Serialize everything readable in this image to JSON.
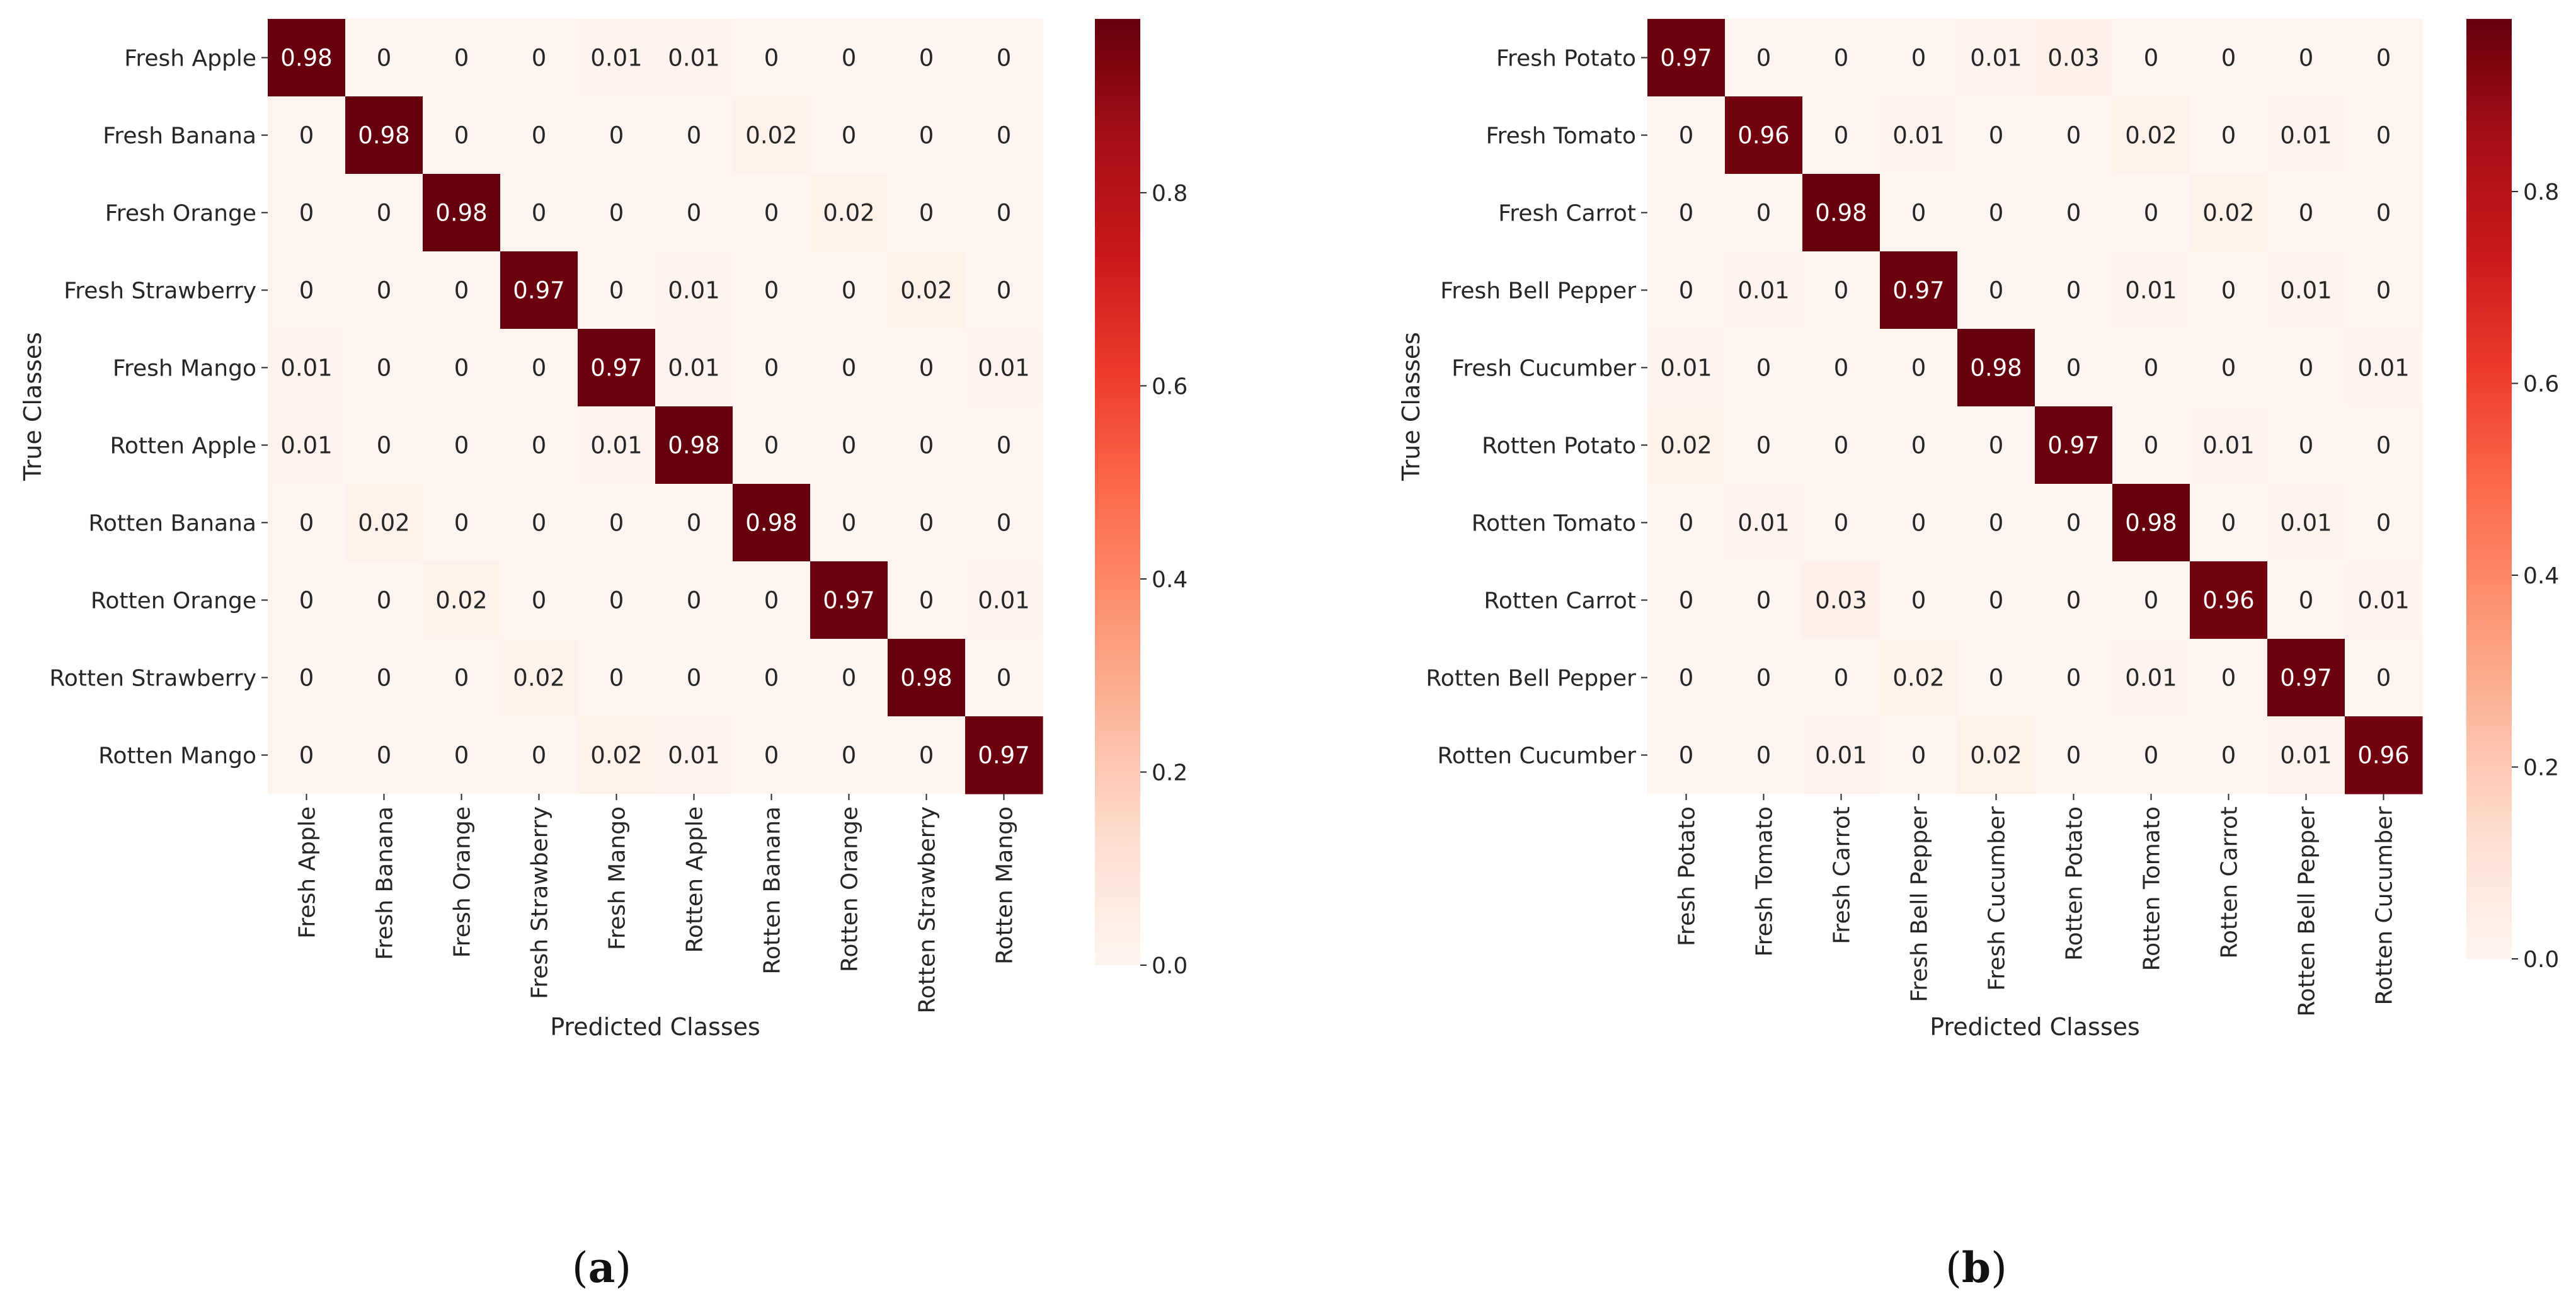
{
  "chart_data": [
    {
      "type": "heatmap",
      "panel_label": "a",
      "xlabel": "Predicted Classes",
      "ylabel": "True Classes",
      "x_categories": [
        "Fresh Apple",
        "Fresh Banana",
        "Fresh Orange",
        "Fresh Strawberry",
        "Fresh Mango",
        "Rotten Apple",
        "Rotten Banana",
        "Rotten Orange",
        "Rotten Strawberry",
        "Rotten Mango"
      ],
      "y_categories": [
        "Fresh Apple",
        "Fresh Banana",
        "Fresh Orange",
        "Fresh Strawberry",
        "Fresh Mango",
        "Rotten Apple",
        "Rotten Banana",
        "Rotten Orange",
        "Rotten Strawberry",
        "Rotten Mango"
      ],
      "values": [
        [
          0.98,
          0,
          0,
          0,
          0.01,
          0.01,
          0,
          0,
          0,
          0
        ],
        [
          0,
          0.98,
          0,
          0,
          0,
          0,
          0.02,
          0,
          0,
          0
        ],
        [
          0,
          0,
          0.98,
          0,
          0,
          0,
          0,
          0.02,
          0,
          0
        ],
        [
          0,
          0,
          0,
          0.97,
          0,
          0.01,
          0,
          0,
          0.02,
          0
        ],
        [
          0.01,
          0,
          0,
          0,
          0.97,
          0.01,
          0,
          0,
          0,
          0.01
        ],
        [
          0.01,
          0,
          0,
          0,
          0.01,
          0.98,
          0,
          0,
          0,
          0
        ],
        [
          0,
          0.02,
          0,
          0,
          0,
          0,
          0.98,
          0,
          0,
          0
        ],
        [
          0,
          0,
          0.02,
          0,
          0,
          0,
          0,
          0.97,
          0,
          0.01
        ],
        [
          0,
          0,
          0,
          0.02,
          0,
          0,
          0,
          0,
          0.98,
          0
        ],
        [
          0,
          0,
          0,
          0,
          0.02,
          0.01,
          0,
          0,
          0,
          0.97
        ]
      ],
      "colorbar": {
        "range": [
          0,
          0.98
        ],
        "ticks": [
          0.0,
          0.2,
          0.4,
          0.6,
          0.8
        ],
        "tick_labels": [
          "0.0",
          "0.2",
          "0.4",
          "0.6",
          "0.8"
        ],
        "colormap": "Reds"
      }
    },
    {
      "type": "heatmap",
      "panel_label": "b",
      "xlabel": "Predicted Classes",
      "ylabel": "True Classes",
      "x_categories": [
        "Fresh Potato",
        "Fresh Tomato",
        "Fresh Carrot",
        "Fresh Bell Pepper",
        "Fresh Cucumber",
        "Rotten Potato",
        "Rotten Tomato",
        "Rotten Carrot",
        "Rotten Bell Pepper",
        "Rotten Cucumber"
      ],
      "y_categories": [
        "Fresh Potato",
        "Fresh Tomato",
        "Fresh Carrot",
        "Fresh Bell Pepper",
        "Fresh Cucumber",
        "Rotten Potato",
        "Rotten Tomato",
        "Rotten Carrot",
        "Rotten Bell Pepper",
        "Rotten Cucumber"
      ],
      "values": [
        [
          0.97,
          0,
          0,
          0,
          0.01,
          0.03,
          0,
          0,
          0,
          0
        ],
        [
          0,
          0.96,
          0,
          0.01,
          0,
          0,
          0.02,
          0,
          0.01,
          0
        ],
        [
          0,
          0,
          0.98,
          0,
          0,
          0,
          0,
          0.02,
          0,
          0
        ],
        [
          0,
          0.01,
          0,
          0.97,
          0,
          0,
          0.01,
          0,
          0.01,
          0
        ],
        [
          0.01,
          0,
          0,
          0,
          0.98,
          0,
          0,
          0,
          0,
          0.01
        ],
        [
          0.02,
          0,
          0,
          0,
          0,
          0.97,
          0,
          0.01,
          0,
          0
        ],
        [
          0,
          0.01,
          0,
          0,
          0,
          0,
          0.98,
          0,
          0.01,
          0
        ],
        [
          0,
          0,
          0.03,
          0,
          0,
          0,
          0,
          0.96,
          0,
          0.01
        ],
        [
          0,
          0,
          0,
          0.02,
          0,
          0,
          0.01,
          0,
          0.97,
          0
        ],
        [
          0,
          0,
          0.01,
          0,
          0.02,
          0,
          0,
          0,
          0.01,
          0.96
        ]
      ],
      "colorbar": {
        "range": [
          0,
          0.98
        ],
        "ticks": [
          0.0,
          0.2,
          0.4,
          0.6,
          0.8
        ],
        "tick_labels": [
          "0.0",
          "0.2",
          "0.4",
          "0.6",
          "0.8"
        ],
        "colormap": "Reds"
      }
    }
  ]
}
